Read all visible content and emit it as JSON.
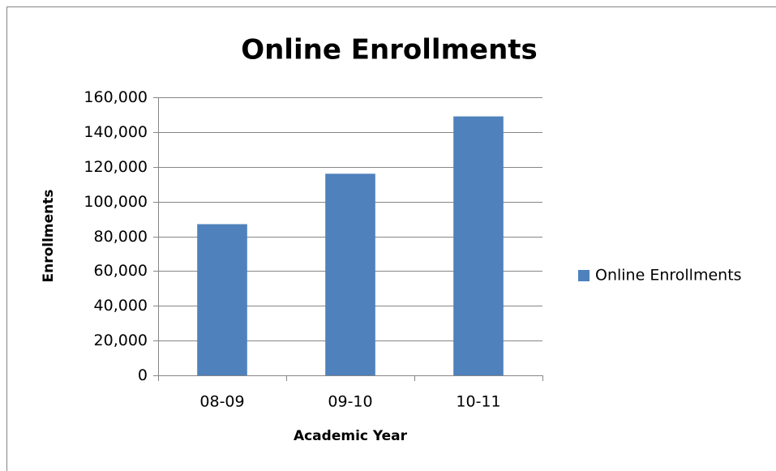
{
  "chart_data": {
    "type": "bar",
    "title": "Online Enrollments",
    "x_label": "Academic Year",
    "y_label": "Enrollments",
    "categories": [
      "08-09",
      "09-10",
      "10-11"
    ],
    "series": [
      {
        "name": "Online Enrollments",
        "color": "#4f81bd",
        "values": [
          87000,
          116000,
          149000
        ]
      }
    ],
    "ylim": [
      0,
      160000
    ],
    "yticks": [
      0,
      {
        "value": 20000,
        "label": "20,000"
      },
      {
        "value": 40000,
        "label": "40,000"
      },
      {
        "value": 60000,
        "label": "60,000"
      },
      {
        "value": 80000,
        "label": "80,000"
      },
      {
        "value": 100000,
        "label": "100,000"
      },
      {
        "value": 120000,
        "label": "120,000"
      },
      {
        "value": 140000,
        "label": "140,000"
      },
      {
        "value": 160000,
        "label": "160,000"
      }
    ],
    "grid": true,
    "legend": "right"
  }
}
